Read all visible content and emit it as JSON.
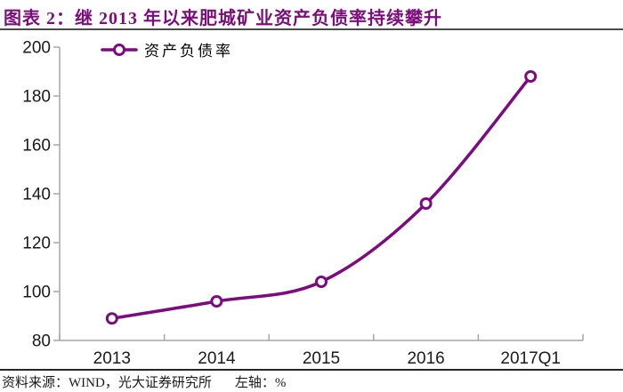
{
  "title": "图表 2：继 2013 年以来肥城矿业资产负债率持续攀升",
  "legend": {
    "label": "资产负债率"
  },
  "footer": {
    "source": "资料来源：WIND，光大证券研究所",
    "axis_note": "左轴：%"
  },
  "colors": {
    "line": "#7D0A7E",
    "title": "#7B0E7B",
    "axis": "#A6A6A6",
    "text": "#1A1A1A"
  },
  "chart_data": {
    "type": "line",
    "title": "继2013年以来肥城矿业资产负债率持续攀升",
    "categories": [
      "2013",
      "2014",
      "2015",
      "2016",
      "2017Q1"
    ],
    "series": [
      {
        "name": "资产负债率",
        "values": [
          89,
          96,
          104,
          136,
          188
        ]
      }
    ],
    "xlabel": "",
    "ylabel": "%",
    "ylim": [
      80,
      200
    ],
    "yticks": [
      80,
      100,
      120,
      140,
      160,
      180,
      200
    ],
    "grid": false,
    "legend_position": "top-left",
    "smooth": true,
    "marker": "open-circle"
  }
}
